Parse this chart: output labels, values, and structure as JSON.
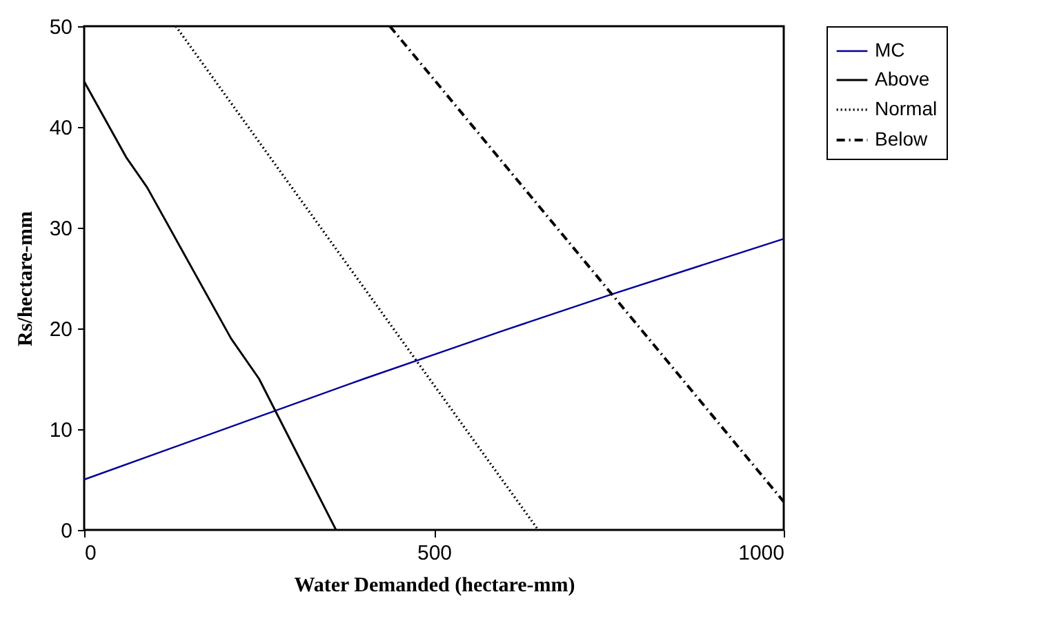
{
  "chart_data": {
    "type": "line",
    "xlabel": "Water Demanded (hectare-mm)",
    "ylabel": "Rs/hectare-mm",
    "xlim": [
      0,
      1000
    ],
    "ylim": [
      0,
      50
    ],
    "xticks": [
      0,
      500,
      1000
    ],
    "yticks": [
      0,
      10,
      20,
      30,
      40,
      50
    ],
    "grid": false,
    "legend": "right",
    "marker": "none",
    "series": [
      {
        "name": "MC",
        "color": "#000099",
        "line_style": "solid",
        "x": [
          0,
          400,
          600,
          750,
          1000
        ],
        "values": [
          5,
          15,
          19.8,
          23.3,
          28.9
        ]
      },
      {
        "name": "Above",
        "color": "#000000",
        "line_style": "solid",
        "x": [
          0,
          60,
          90,
          210,
          250,
          360
        ],
        "values": [
          44.5,
          37,
          34,
          19,
          15,
          0
        ]
      },
      {
        "name": "Normal",
        "color": "#000000",
        "line_style": "dotted",
        "x": [
          131,
          649
        ],
        "values": [
          50,
          0
        ]
      },
      {
        "name": "Below",
        "color": "#000000",
        "line_style": "dashed",
        "x": [
          437,
          1000
        ],
        "values": [
          50,
          2.8
        ]
      }
    ]
  }
}
